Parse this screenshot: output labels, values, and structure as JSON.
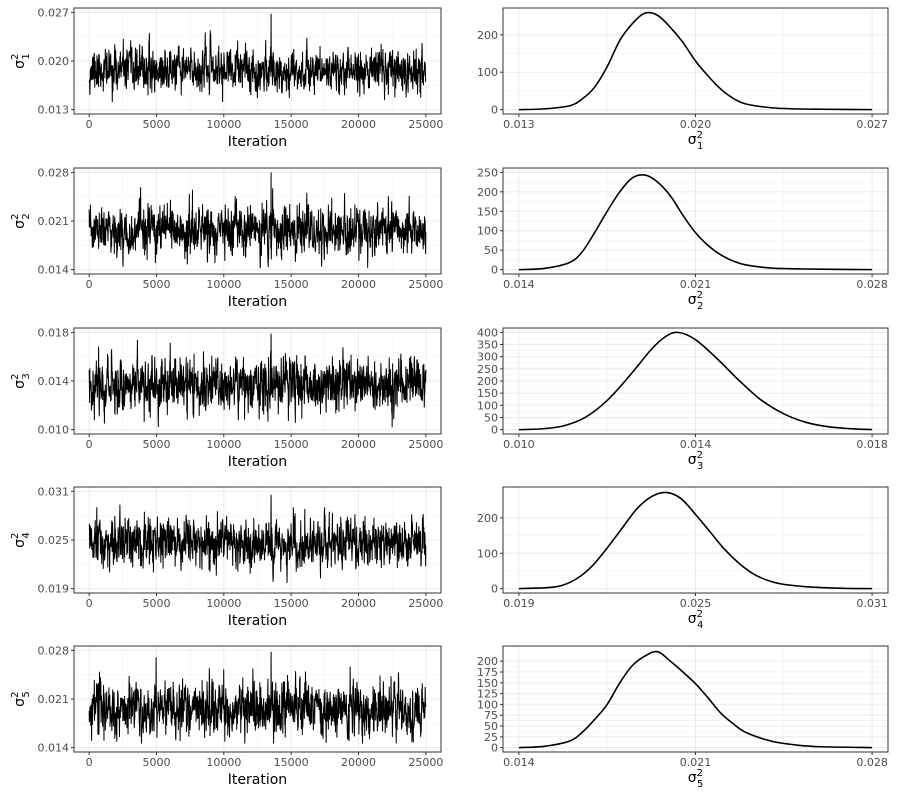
{
  "chart_data": [
    {
      "type": "line",
      "subtype": "trace",
      "parameter": "sigma_1^2",
      "ylabel": {
        "base": "σ",
        "sup": "2",
        "sub": "1"
      },
      "xlabel": "Iteration",
      "xlim": [
        0,
        25000
      ],
      "ylim": [
        0.013,
        0.027
      ],
      "xticks": [
        0,
        5000,
        10000,
        15000,
        20000,
        25000
      ],
      "xtick_labels": [
        "0",
        "5000",
        "10000",
        "15000",
        "20000",
        "25000"
      ],
      "yticks": [
        0.013,
        0.02,
        0.027
      ],
      "ytick_labels": [
        "0.013",
        "0.020",
        "0.027"
      ],
      "trace": {
        "n_points": 1500,
        "mean": 0.0187,
        "sd": 0.0015,
        "min": 0.0133,
        "max": 0.0268,
        "seed": 11
      }
    },
    {
      "type": "line",
      "subtype": "density",
      "parameter": "sigma_1^2",
      "xlabel": {
        "base": "σ",
        "sup": "2",
        "sub": "1"
      },
      "ylabel": "",
      "xlim": [
        0.013,
        0.027
      ],
      "ylim": [
        0,
        260
      ],
      "xticks": [
        0.013,
        0.02,
        0.027
      ],
      "xtick_labels": [
        "0.013",
        "0.020",
        "0.027"
      ],
      "yticks": [
        0,
        100,
        200
      ],
      "ytick_labels": [
        "0",
        "100",
        "200"
      ],
      "x": [
        0.013,
        0.014,
        0.015,
        0.0155,
        0.016,
        0.0165,
        0.017,
        0.0175,
        0.018,
        0.0185,
        0.019,
        0.0195,
        0.02,
        0.0205,
        0.021,
        0.0215,
        0.022,
        0.023,
        0.024,
        0.025,
        0.027
      ],
      "y": [
        0,
        2,
        10,
        28,
        60,
        115,
        185,
        230,
        258,
        252,
        220,
        180,
        130,
        90,
        55,
        30,
        15,
        5,
        2,
        1,
        0
      ]
    },
    {
      "type": "line",
      "subtype": "trace",
      "parameter": "sigma_2^2",
      "ylabel": {
        "base": "σ",
        "sup": "2",
        "sub": "2"
      },
      "xlabel": "Iteration",
      "xlim": [
        0,
        25000
      ],
      "ylim": [
        0.014,
        0.028
      ],
      "xticks": [
        0,
        5000,
        10000,
        15000,
        20000,
        25000
      ],
      "xtick_labels": [
        "0",
        "5000",
        "10000",
        "15000",
        "20000",
        "25000"
      ],
      "yticks": [
        0.014,
        0.021,
        0.028
      ],
      "ytick_labels": [
        "0.014",
        "0.021",
        "0.028"
      ],
      "trace": {
        "n_points": 1500,
        "mean": 0.0195,
        "sd": 0.0017,
        "min": 0.0142,
        "max": 0.028,
        "seed": 23
      }
    },
    {
      "type": "line",
      "subtype": "density",
      "parameter": "sigma_2^2",
      "xlabel": {
        "base": "σ",
        "sup": "2",
        "sub": "2"
      },
      "ylabel": "",
      "xlim": [
        0.014,
        0.028
      ],
      "ylim": [
        0,
        250
      ],
      "xticks": [
        0.014,
        0.021,
        0.028
      ],
      "xtick_labels": [
        "0.014",
        "0.021",
        "0.028"
      ],
      "yticks": [
        0,
        50,
        100,
        150,
        200,
        250
      ],
      "ytick_labels": [
        "0",
        "50",
        "100",
        "150",
        "200",
        "250"
      ],
      "x": [
        0.014,
        0.015,
        0.016,
        0.0165,
        0.017,
        0.0175,
        0.018,
        0.0185,
        0.019,
        0.0195,
        0.02,
        0.0205,
        0.021,
        0.0215,
        0.022,
        0.0225,
        0.023,
        0.024,
        0.025,
        0.026,
        0.028
      ],
      "y": [
        0,
        3,
        18,
        45,
        95,
        150,
        200,
        236,
        243,
        225,
        190,
        140,
        95,
        62,
        38,
        22,
        12,
        4,
        2,
        1,
        0
      ]
    },
    {
      "type": "line",
      "subtype": "trace",
      "parameter": "sigma_3^2",
      "ylabel": {
        "base": "σ",
        "sup": "2",
        "sub": "3"
      },
      "xlabel": "Iteration",
      "xlim": [
        0,
        25000
      ],
      "ylim": [
        0.01,
        0.018
      ],
      "xticks": [
        0,
        5000,
        10000,
        15000,
        20000,
        25000
      ],
      "xtick_labels": [
        "0",
        "5000",
        "10000",
        "15000",
        "20000",
        "25000"
      ],
      "yticks": [
        0.01,
        0.014,
        0.018
      ],
      "ytick_labels": [
        "0.010",
        "0.014",
        "0.018"
      ],
      "trace": {
        "n_points": 1500,
        "mean": 0.0137,
        "sd": 0.0011,
        "min": 0.0102,
        "max": 0.0179,
        "seed": 37
      }
    },
    {
      "type": "line",
      "subtype": "density",
      "parameter": "sigma_3^2",
      "xlabel": {
        "base": "σ",
        "sup": "2",
        "sub": "3"
      },
      "ylabel": "",
      "xlim": [
        0.01,
        0.018
      ],
      "ylim": [
        0,
        400
      ],
      "xticks": [
        0.01,
        0.014,
        0.018
      ],
      "xtick_labels": [
        "0.010",
        "0.014",
        "0.018"
      ],
      "yticks": [
        0,
        50,
        100,
        150,
        200,
        250,
        300,
        350,
        400
      ],
      "ytick_labels": [
        "0",
        "50",
        "100",
        "150",
        "200",
        "250",
        "300",
        "350",
        "400"
      ],
      "x": [
        0.01,
        0.0105,
        0.011,
        0.0115,
        0.012,
        0.0125,
        0.013,
        0.0133,
        0.0136,
        0.014,
        0.0145,
        0.015,
        0.0155,
        0.016,
        0.0165,
        0.017,
        0.0175,
        0.018
      ],
      "y": [
        0,
        3,
        15,
        50,
        120,
        220,
        330,
        380,
        400,
        370,
        290,
        200,
        120,
        65,
        30,
        12,
        4,
        0
      ]
    },
    {
      "type": "line",
      "subtype": "trace",
      "parameter": "sigma_4^2",
      "ylabel": {
        "base": "σ",
        "sup": "2",
        "sub": "4"
      },
      "xlabel": "Iteration",
      "xlim": [
        0,
        25000
      ],
      "ylim": [
        0.019,
        0.031
      ],
      "xticks": [
        0,
        5000,
        10000,
        15000,
        20000,
        25000
      ],
      "xtick_labels": [
        "0",
        "5000",
        "10000",
        "15000",
        "20000",
        "25000"
      ],
      "yticks": [
        0.019,
        0.025,
        0.031
      ],
      "ytick_labels": [
        "0.019",
        "0.025",
        "0.031"
      ],
      "trace": {
        "n_points": 1500,
        "mean": 0.0245,
        "sd": 0.0015,
        "min": 0.0192,
        "max": 0.0306,
        "seed": 51
      }
    },
    {
      "type": "line",
      "subtype": "density",
      "parameter": "sigma_4^2",
      "xlabel": {
        "base": "σ",
        "sup": "2",
        "sub": "4"
      },
      "ylabel": "",
      "xlim": [
        0.019,
        0.031
      ],
      "ylim": [
        0,
        275
      ],
      "xticks": [
        0.019,
        0.025,
        0.031
      ],
      "xtick_labels": [
        "0.019",
        "0.025",
        "0.031"
      ],
      "yticks": [
        0,
        100,
        200
      ],
      "ytick_labels": [
        "0",
        "100",
        "200"
      ],
      "x": [
        0.019,
        0.02,
        0.0205,
        0.021,
        0.0215,
        0.022,
        0.0225,
        0.023,
        0.0235,
        0.024,
        0.0245,
        0.025,
        0.0255,
        0.026,
        0.0265,
        0.027,
        0.0275,
        0.028,
        0.029,
        0.03,
        0.031
      ],
      "y": [
        0,
        3,
        10,
        30,
        65,
        115,
        170,
        225,
        260,
        272,
        255,
        210,
        160,
        110,
        70,
        40,
        22,
        12,
        4,
        1,
        0
      ]
    },
    {
      "type": "line",
      "subtype": "trace",
      "parameter": "sigma_5^2",
      "ylabel": {
        "base": "σ",
        "sup": "2",
        "sub": "5"
      },
      "xlabel": "Iteration",
      "xlim": [
        0,
        25000
      ],
      "ylim": [
        0.014,
        0.028
      ],
      "xticks": [
        0,
        5000,
        10000,
        15000,
        20000,
        25000
      ],
      "xtick_labels": [
        "0",
        "5000",
        "10000",
        "15000",
        "20000",
        "25000"
      ],
      "yticks": [
        0.014,
        0.021,
        0.028
      ],
      "ytick_labels": [
        "0.014",
        "0.021",
        "0.028"
      ],
      "trace": {
        "n_points": 1500,
        "mean": 0.0196,
        "sd": 0.0019,
        "min": 0.0146,
        "max": 0.0278,
        "seed": 67
      }
    },
    {
      "type": "line",
      "subtype": "density",
      "parameter": "sigma_5^2",
      "xlabel": {
        "base": "σ",
        "sup": "2",
        "sub": "5"
      },
      "ylabel": "",
      "xlim": [
        0.014,
        0.028
      ],
      "ylim": [
        0,
        225
      ],
      "xticks": [
        0.014,
        0.021,
        0.028
      ],
      "xtick_labels": [
        "0.014",
        "0.021",
        "0.028"
      ],
      "yticks": [
        0,
        25,
        50,
        75,
        100,
        125,
        150,
        175,
        200
      ],
      "ytick_labels": [
        "0",
        "25",
        "50",
        "75",
        "100",
        "125",
        "150",
        "175",
        "200"
      ],
      "x": [
        0.014,
        0.015,
        0.016,
        0.0165,
        0.017,
        0.0175,
        0.018,
        0.0185,
        0.019,
        0.0195,
        0.02,
        0.0205,
        0.021,
        0.0215,
        0.022,
        0.0225,
        0.023,
        0.024,
        0.025,
        0.026,
        0.028
      ],
      "y": [
        0,
        3,
        15,
        35,
        65,
        100,
        150,
        190,
        212,
        222,
        200,
        175,
        148,
        115,
        80,
        55,
        35,
        15,
        6,
        2,
        0
      ]
    }
  ]
}
